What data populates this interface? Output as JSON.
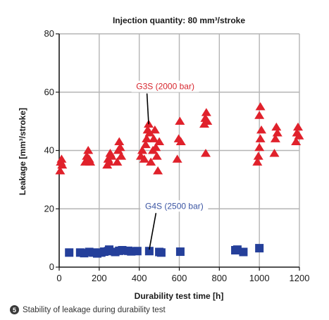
{
  "chart_data": {
    "type": "scatter",
    "title": "Injection quantity: 80 mm³/stroke",
    "xlabel": "Durability test time [h]",
    "ylabel": "Leakage [mm³/stroke]",
    "xlim": [
      0,
      1200
    ],
    "ylim": [
      0,
      80
    ],
    "x_ticks": [
      0,
      200,
      400,
      600,
      800,
      1000,
      1200
    ],
    "y_ticks": [
      0,
      20,
      40,
      60,
      80
    ],
    "x_tick_labels": [
      "0",
      "200",
      "400",
      "600",
      "800",
      "1000",
      "1200"
    ],
    "y_tick_labels": [
      "0",
      "20",
      "40",
      "60",
      "80"
    ],
    "grid": true,
    "series": [
      {
        "name": "G3S (2000 bar)",
        "marker": "triangle",
        "color": "#e0212b",
        "label_color": "#d7262e",
        "points": [
          [
            5,
            33
          ],
          [
            8,
            36
          ],
          [
            12,
            37
          ],
          [
            15,
            35
          ],
          [
            130,
            36
          ],
          [
            138,
            38
          ],
          [
            145,
            40
          ],
          [
            150,
            37
          ],
          [
            155,
            36
          ],
          [
            240,
            35
          ],
          [
            245,
            37
          ],
          [
            250,
            36
          ],
          [
            255,
            39
          ],
          [
            262,
            38
          ],
          [
            290,
            36
          ],
          [
            295,
            40
          ],
          [
            300,
            43
          ],
          [
            305,
            41
          ],
          [
            310,
            38
          ],
          [
            408,
            38
          ],
          [
            415,
            40
          ],
          [
            425,
            37
          ],
          [
            432,
            42
          ],
          [
            437,
            44
          ],
          [
            442,
            47
          ],
          [
            447,
            49
          ],
          [
            452,
            46
          ],
          [
            458,
            36
          ],
          [
            468,
            40
          ],
          [
            472,
            44
          ],
          [
            478,
            47
          ],
          [
            483,
            41
          ],
          [
            488,
            38
          ],
          [
            493,
            33
          ],
          [
            500,
            43
          ],
          [
            590,
            37
          ],
          [
            597,
            44
          ],
          [
            603,
            50
          ],
          [
            608,
            43
          ],
          [
            725,
            49
          ],
          [
            730,
            51
          ],
          [
            735,
            53
          ],
          [
            740,
            50
          ],
          [
            732,
            39
          ],
          [
            990,
            36
          ],
          [
            995,
            38
          ],
          [
            1000,
            41
          ],
          [
            1005,
            44
          ],
          [
            1010,
            47
          ],
          [
            1000,
            52
          ],
          [
            1005,
            55
          ],
          [
            1075,
            39
          ],
          [
            1080,
            44
          ],
          [
            1085,
            48
          ],
          [
            1090,
            46
          ],
          [
            1183,
            43
          ],
          [
            1188,
            46
          ],
          [
            1193,
            48
          ],
          [
            1198,
            45
          ]
        ]
      },
      {
        "name": "G4S (2500 bar)",
        "marker": "square",
        "color": "#243f9a",
        "label_color": "#3b55a3",
        "points": [
          [
            50,
            5
          ],
          [
            105,
            5
          ],
          [
            125,
            4.8
          ],
          [
            150,
            5.2
          ],
          [
            170,
            5
          ],
          [
            190,
            4.7
          ],
          [
            210,
            5
          ],
          [
            225,
            5.3
          ],
          [
            245,
            5.5
          ],
          [
            250,
            6
          ],
          [
            280,
            5.2
          ],
          [
            300,
            5.6
          ],
          [
            315,
            5.8
          ],
          [
            345,
            5.6
          ],
          [
            360,
            5.4
          ],
          [
            390,
            5.5
          ],
          [
            450,
            5.5
          ],
          [
            500,
            5.2
          ],
          [
            510,
            5
          ],
          [
            605,
            5.3
          ],
          [
            880,
            5.8
          ],
          [
            890,
            6
          ],
          [
            920,
            5.2
          ],
          [
            1000,
            6.5
          ]
        ]
      }
    ],
    "annotations": [
      {
        "series": 0,
        "text": "G3S (2000 bar)",
        "anchor": [
          447,
          49
        ],
        "text_at": [
          530,
          61
        ]
      },
      {
        "series": 1,
        "text": "G4S (2500 bar)",
        "anchor": [
          450,
          6
        ],
        "text_at": [
          575,
          20
        ]
      }
    ]
  },
  "caption": {
    "number": "5",
    "text": "Stability of leakage during durability test"
  }
}
